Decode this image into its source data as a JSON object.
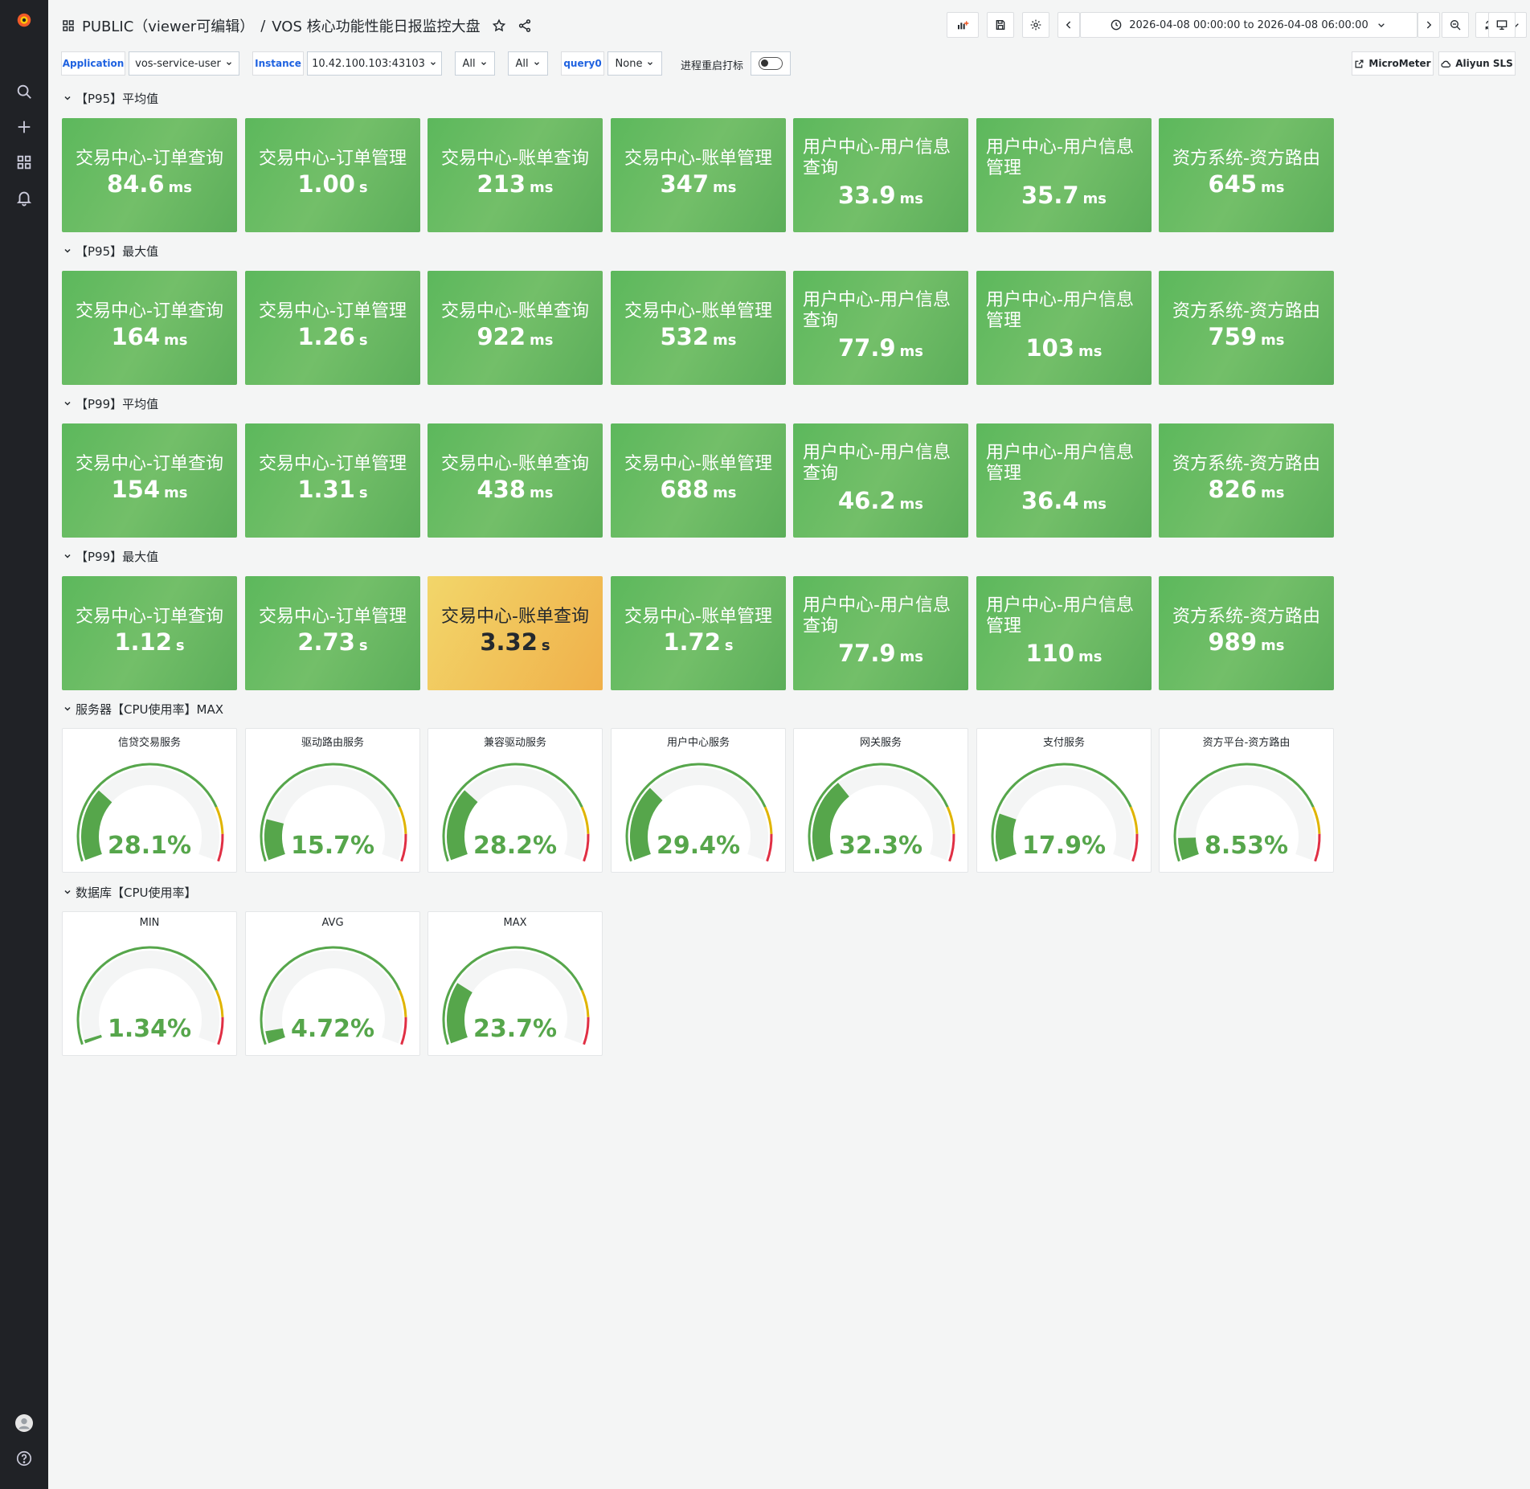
{
  "header": {
    "breadcrumb_folder": "PUBLIC（viewer可编辑）",
    "separator": "/",
    "dashboard_title": "VOS 核心功能性能日报监控大盘",
    "time_range": "2026-04-08 00:00:00 to 2026-04-08 06:00:00"
  },
  "icons": {
    "logo": "grafana-logo-icon",
    "search": "search-icon",
    "create": "plus-icon",
    "dashboards": "apps-grid-icon",
    "alerting": "bell-icon",
    "profile": "avatar-icon",
    "help": "help-circle-icon"
  },
  "variables": {
    "application_label": "Application",
    "application_value": "vos-service-user",
    "instance_label": "Instance",
    "instance_value": "10.42.100.103:43103",
    "filter1_value": "All",
    "filter2_value": "All",
    "query0_label": "query0",
    "query0_value": "None",
    "restart_mark_label": "进程重启打标",
    "restart_mark_on": false,
    "link_micrometer": "MicroMeter",
    "link_aliyun": "Aliyun SLS"
  },
  "colors": {
    "ok_green": "#73bf69",
    "warn_orange": "#f0b04a",
    "gauge_green": "#56a64b",
    "gauge_yellow": "#e0b400",
    "gauge_red": "#e02f44"
  },
  "stat_rows": [
    {
      "title": "【P95】平均值",
      "panels": [
        {
          "title": "交易中心-订单查询",
          "value": "84.6",
          "unit": "ms",
          "status": "ok"
        },
        {
          "title": "交易中心-订单管理",
          "value": "1.00",
          "unit": "s",
          "status": "ok"
        },
        {
          "title": "交易中心-账单查询",
          "value": "213",
          "unit": "ms",
          "status": "ok"
        },
        {
          "title": "交易中心-账单管理",
          "value": "347",
          "unit": "ms",
          "status": "ok"
        },
        {
          "title": "用户中心-用户信息查询",
          "value": "33.9",
          "unit": "ms",
          "status": "ok"
        },
        {
          "title": "用户中心-用户信息管理",
          "value": "35.7",
          "unit": "ms",
          "status": "ok"
        },
        {
          "title": "资方系统-资方路由",
          "value": "645",
          "unit": "ms",
          "status": "ok"
        }
      ]
    },
    {
      "title": "【P95】最大值",
      "panels": [
        {
          "title": "交易中心-订单查询",
          "value": "164",
          "unit": "ms",
          "status": "ok"
        },
        {
          "title": "交易中心-订单管理",
          "value": "1.26",
          "unit": "s",
          "status": "ok"
        },
        {
          "title": "交易中心-账单查询",
          "value": "922",
          "unit": "ms",
          "status": "ok"
        },
        {
          "title": "交易中心-账单管理",
          "value": "532",
          "unit": "ms",
          "status": "ok"
        },
        {
          "title": "用户中心-用户信息查询",
          "value": "77.9",
          "unit": "ms",
          "status": "ok"
        },
        {
          "title": "用户中心-用户信息管理",
          "value": "103",
          "unit": "ms",
          "status": "ok"
        },
        {
          "title": "资方系统-资方路由",
          "value": "759",
          "unit": "ms",
          "status": "ok"
        }
      ]
    },
    {
      "title": "【P99】平均值",
      "panels": [
        {
          "title": "交易中心-订单查询",
          "value": "154",
          "unit": "ms",
          "status": "ok"
        },
        {
          "title": "交易中心-订单管理",
          "value": "1.31",
          "unit": "s",
          "status": "ok"
        },
        {
          "title": "交易中心-账单查询",
          "value": "438",
          "unit": "ms",
          "status": "ok"
        },
        {
          "title": "交易中心-账单管理",
          "value": "688",
          "unit": "ms",
          "status": "ok"
        },
        {
          "title": "用户中心-用户信息查询",
          "value": "46.2",
          "unit": "ms",
          "status": "ok"
        },
        {
          "title": "用户中心-用户信息管理",
          "value": "36.4",
          "unit": "ms",
          "status": "ok"
        },
        {
          "title": "资方系统-资方路由",
          "value": "826",
          "unit": "ms",
          "status": "ok"
        }
      ]
    },
    {
      "title": "【P99】最大值",
      "panels": [
        {
          "title": "交易中心-订单查询",
          "value": "1.12",
          "unit": "s",
          "status": "ok"
        },
        {
          "title": "交易中心-订单管理",
          "value": "2.73",
          "unit": "s",
          "status": "ok"
        },
        {
          "title": "交易中心-账单查询",
          "value": "3.32",
          "unit": "s",
          "status": "warn"
        },
        {
          "title": "交易中心-账单管理",
          "value": "1.72",
          "unit": "s",
          "status": "ok"
        },
        {
          "title": "用户中心-用户信息查询",
          "value": "77.9",
          "unit": "ms",
          "status": "ok"
        },
        {
          "title": "用户中心-用户信息管理",
          "value": "110",
          "unit": "ms",
          "status": "ok"
        },
        {
          "title": "资方系统-资方路由",
          "value": "989",
          "unit": "ms",
          "status": "ok"
        }
      ]
    }
  ],
  "gauge_rows": [
    {
      "title": "服务器【CPU使用率】MAX",
      "panels": [
        {
          "title": "信贷交易服务",
          "value": 28.1,
          "label": "28.1%"
        },
        {
          "title": "驱动路由服务",
          "value": 15.7,
          "label": "15.7%"
        },
        {
          "title": "兼容驱动服务",
          "value": 28.2,
          "label": "28.2%"
        },
        {
          "title": "用户中心服务",
          "value": 29.4,
          "label": "29.4%"
        },
        {
          "title": "网关服务",
          "value": 32.3,
          "label": "32.3%"
        },
        {
          "title": "支付服务",
          "value": 17.9,
          "label": "17.9%"
        },
        {
          "title": "资方平台-资方路由",
          "value": 8.53,
          "label": "8.53%"
        }
      ]
    },
    {
      "title": "数据库【CPU使用率】",
      "panels": [
        {
          "title": "MIN",
          "value": 1.34,
          "label": "1.34%"
        },
        {
          "title": "AVG",
          "value": 4.72,
          "label": "4.72%"
        },
        {
          "title": "MAX",
          "value": 23.7,
          "label": "23.7%"
        }
      ]
    }
  ]
}
